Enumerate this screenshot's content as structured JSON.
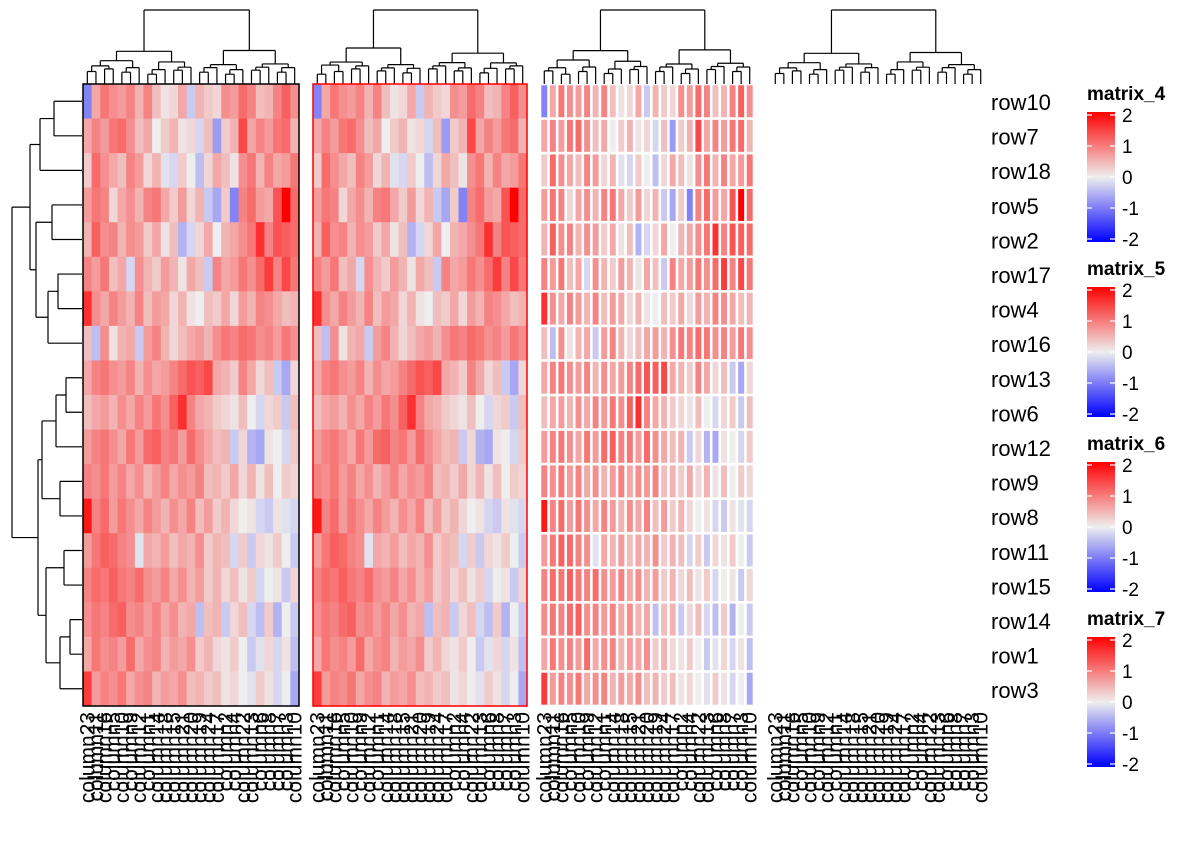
{
  "chart_data": {
    "type": "heatmap",
    "row_order": [
      "row10",
      "row7",
      "row18",
      "row5",
      "row2",
      "row17",
      "row4",
      "row16",
      "row13",
      "row6",
      "row12",
      "row9",
      "row8",
      "row11",
      "row15",
      "row14",
      "row1",
      "row3"
    ],
    "column_labels": [
      "column23",
      "column11",
      "column16",
      "column5",
      "column10",
      "column9",
      "column12",
      "column1",
      "column14",
      "column18",
      "column15",
      "column21",
      "column20",
      "column19",
      "column24",
      "column17",
      "column2",
      "column4",
      "column22",
      "column13",
      "column6",
      "column8",
      "column7",
      "column3",
      "column10"
    ],
    "color_scale": {
      "min": -2,
      "mid": 0,
      "max": 2,
      "low_color": "#0000ff",
      "mid_color": "#eeeeee",
      "high_color": "#ff0000"
    },
    "value_grid": [
      [
        -0.9,
        0.6,
        1.0,
        0.8,
        0.7,
        0.9,
        0.5,
        0.9,
        0.4,
        0.1,
        0.2,
        0.6,
        -0.3,
        0.5,
        0.3,
        0.2,
        0.8,
        0.7,
        1.1,
        0.9,
        0.4,
        0.5,
        0.9,
        1.2,
        0.8
      ],
      [
        0.6,
        0.9,
        0.7,
        1.0,
        1.1,
        0.8,
        0.4,
        0.6,
        0.0,
        0.3,
        0.5,
        0.1,
        0.2,
        -0.2,
        0.4,
        -0.7,
        0.3,
        0.5,
        1.4,
        0.6,
        0.9,
        0.7,
        1.0,
        1.1,
        0.5
      ],
      [
        0.3,
        1.1,
        0.8,
        0.6,
        0.4,
        0.9,
        0.7,
        0.2,
        0.5,
        -0.1,
        -0.2,
        0.3,
        0.0,
        -0.4,
        0.2,
        0.6,
        0.4,
        0.1,
        0.8,
        1.0,
        0.5,
        0.9,
        0.6,
        0.7,
        1.0
      ],
      [
        0.7,
        1.0,
        0.9,
        0.2,
        0.6,
        0.8,
        0.5,
        0.9,
        1.0,
        0.6,
        0.3,
        0.7,
        0.2,
        0.5,
        -0.3,
        -0.6,
        0.3,
        -0.9,
        0.9,
        1.1,
        0.7,
        0.6,
        1.3,
        2.0,
        1.1
      ],
      [
        0.5,
        1.2,
        0.8,
        0.9,
        0.5,
        0.8,
        0.7,
        0.3,
        0.6,
        0.1,
        0.4,
        -0.5,
        -0.2,
        0.2,
        0.6,
        0.0,
        0.5,
        0.6,
        0.8,
        1.0,
        1.6,
        0.9,
        1.3,
        1.2,
        1.1
      ],
      [
        0.9,
        0.7,
        1.0,
        0.4,
        0.6,
        -0.2,
        0.8,
        0.5,
        0.3,
        0.7,
        0.5,
        0.1,
        0.6,
        0.4,
        -0.3,
        0.9,
        0.6,
        0.7,
        1.0,
        0.8,
        1.1,
        1.5,
        0.9,
        1.4,
        1.0
      ],
      [
        1.6,
        0.8,
        0.6,
        0.9,
        0.7,
        0.5,
        0.9,
        0.4,
        0.7,
        0.6,
        0.2,
        0.5,
        0.1,
        0.0,
        0.4,
        0.3,
        0.6,
        0.2,
        0.7,
        0.5,
        0.9,
        0.8,
        0.6,
        0.4,
        0.5
      ],
      [
        0.4,
        -0.4,
        0.8,
        0.1,
        0.5,
        0.6,
        -0.3,
        0.7,
        0.9,
        0.5,
        0.2,
        0.4,
        0.6,
        0.7,
        0.5,
        0.8,
        1.0,
        0.9,
        1.1,
        1.0,
        0.8,
        0.9,
        0.7,
        1.0,
        0.8
      ],
      [
        0.6,
        0.9,
        1.0,
        0.8,
        0.7,
        0.9,
        0.5,
        0.8,
        0.6,
        0.7,
        0.9,
        1.1,
        1.3,
        1.2,
        1.4,
        0.6,
        0.5,
        0.3,
        0.9,
        0.6,
        0.2,
        0.4,
        -0.3,
        -0.6,
        0.2
      ],
      [
        0.4,
        0.6,
        0.7,
        0.5,
        0.8,
        0.6,
        0.9,
        0.7,
        1.0,
        0.8,
        1.2,
        1.6,
        0.9,
        0.6,
        0.5,
        0.3,
        0.2,
        0.1,
        0.4,
        0.0,
        -0.2,
        0.2,
        0.3,
        -0.3,
        0.4
      ],
      [
        0.7,
        0.9,
        1.0,
        0.8,
        0.6,
        1.0,
        0.7,
        1.1,
        1.2,
        0.9,
        1.0,
        0.7,
        1.1,
        0.8,
        0.6,
        0.4,
        0.5,
        -0.3,
        0.2,
        -0.5,
        -0.6,
        0.1,
        0.0,
        -0.2,
        0.3
      ],
      [
        0.9,
        0.8,
        1.0,
        0.7,
        0.9,
        0.6,
        0.8,
        0.5,
        0.7,
        0.9,
        0.6,
        0.8,
        0.7,
        0.9,
        0.4,
        0.5,
        0.3,
        0.6,
        0.2,
        0.5,
        0.1,
        0.4,
        0.0,
        0.3,
        0.2
      ],
      [
        1.8,
        0.9,
        1.1,
        0.7,
        1.0,
        0.8,
        0.6,
        0.9,
        0.7,
        0.5,
        0.8,
        0.6,
        0.9,
        0.4,
        0.7,
        0.3,
        0.5,
        0.2,
        0.0,
        0.1,
        -0.2,
        -0.3,
        0.1,
        -0.1,
        -0.2
      ],
      [
        0.7,
        1.0,
        1.2,
        1.1,
        0.9,
        0.8,
        -0.1,
        0.6,
        0.5,
        0.7,
        0.4,
        0.6,
        0.5,
        0.8,
        0.3,
        0.5,
        0.4,
        -0.2,
        0.3,
        -0.3,
        0.2,
        0.1,
        0.3,
        0.0,
        -0.3
      ],
      [
        0.9,
        1.1,
        1.0,
        1.2,
        1.0,
        0.9,
        1.1,
        0.8,
        0.7,
        0.9,
        0.6,
        0.8,
        0.5,
        0.7,
        0.3,
        0.5,
        0.2,
        0.4,
        0.1,
        0.3,
        -0.2,
        0.0,
        0.1,
        -0.3,
        0.2
      ],
      [
        0.8,
        1.0,
        0.9,
        1.1,
        1.2,
        0.8,
        0.9,
        0.7,
        0.9,
        0.6,
        0.8,
        0.5,
        0.6,
        -0.4,
        0.4,
        0.5,
        -0.3,
        0.2,
        0.4,
        -0.2,
        -0.4,
        0.3,
        -0.5,
        0.0,
        -0.3
      ],
      [
        0.6,
        1.0,
        0.8,
        0.9,
        0.7,
        1.1,
        0.6,
        0.8,
        0.9,
        0.5,
        0.7,
        0.6,
        0.8,
        0.3,
        0.5,
        0.2,
        0.1,
        0.3,
        0.0,
        -0.3,
        -0.1,
        0.2,
        -0.2,
        0.1,
        -0.4
      ],
      [
        1.5,
        0.7,
        0.9,
        0.8,
        1.0,
        0.6,
        0.8,
        0.9,
        0.5,
        0.7,
        0.6,
        0.8,
        0.4,
        0.5,
        0.3,
        0.4,
        0.1,
        0.2,
        0.0,
        -0.1,
        0.3,
        0.1,
        -0.2,
        0.0,
        -0.6
      ]
    ],
    "heatmaps": [
      {
        "name": "matrix_4",
        "show_data": true,
        "border": true,
        "border_color": "#000000",
        "cell_gaps": false
      },
      {
        "name": "matrix_5",
        "show_data": true,
        "border": true,
        "border_color": "#ff0000",
        "cell_gaps": false
      },
      {
        "name": "matrix_6",
        "show_data": true,
        "border": false,
        "border_color": "",
        "cell_gaps": true
      },
      {
        "name": "matrix_7",
        "show_data": false,
        "border": false,
        "border_color": "",
        "cell_gaps": false
      }
    ],
    "legends": [
      {
        "title": "matrix_4",
        "ticks": [
          "2",
          "1",
          "0",
          "-1",
          "-2"
        ]
      },
      {
        "title": "matrix_5",
        "ticks": [
          "2",
          "1",
          "0",
          "-1",
          "-2"
        ]
      },
      {
        "title": "matrix_6",
        "ticks": [
          "2",
          "1",
          "0",
          "-1",
          "-2"
        ]
      },
      {
        "title": "matrix_7",
        "ticks": [
          "2",
          "1",
          "0",
          "-1",
          "-2"
        ]
      }
    ],
    "row_dendrogram": true,
    "column_dendrogram": true
  }
}
